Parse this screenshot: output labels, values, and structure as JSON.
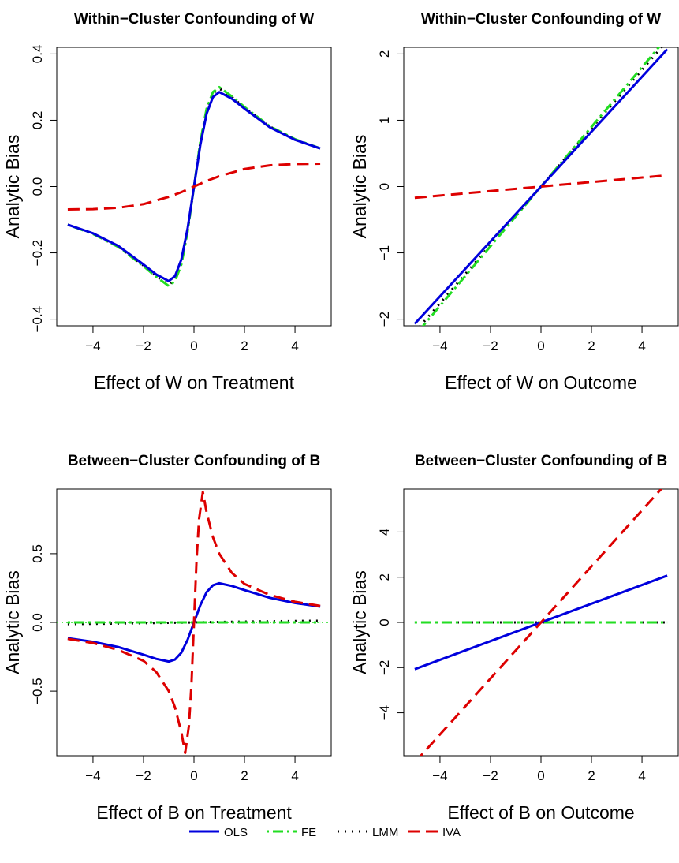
{
  "chart_data": [
    {
      "type": "line",
      "title": "Within−Cluster Confounding of W",
      "xlabel": "Effect of W on Treatment",
      "ylabel": "Analytic Bias",
      "xlim": [
        -5,
        5
      ],
      "ylim": [
        -0.42,
        0.42
      ],
      "xticks": [
        "−4",
        "−2",
        "0",
        "2",
        "4"
      ],
      "xtick_values": [
        -4,
        -2,
        0,
        2,
        4
      ],
      "yticks": [
        "−0.4",
        "−0.2",
        "0.0",
        "0.2",
        "0.4"
      ],
      "ytick_values": [
        -0.4,
        -0.2,
        0,
        0.2,
        0.4
      ],
      "grid": false,
      "series": [
        {
          "name": "OLS",
          "x": [
            -5,
            -4,
            -3,
            -2,
            -1.5,
            -1,
            -0.75,
            -0.5,
            -0.25,
            0,
            0.25,
            0.5,
            0.75,
            1,
            1.5,
            2,
            3,
            4,
            5
          ],
          "y": [
            -0.115,
            -0.141,
            -0.179,
            -0.235,
            -0.265,
            -0.285,
            -0.27,
            -0.22,
            -0.125,
            0,
            0.125,
            0.22,
            0.27,
            0.285,
            0.265,
            0.235,
            0.179,
            0.141,
            0.115
          ]
        },
        {
          "name": "FE",
          "x": [
            -5,
            -4,
            -3,
            -2,
            -1.5,
            -1,
            -0.75,
            -0.5,
            -0.25,
            0,
            0.25,
            0.5,
            0.75,
            1,
            1.5,
            2,
            3,
            4,
            5
          ],
          "y": [
            -0.115,
            -0.143,
            -0.182,
            -0.24,
            -0.272,
            -0.3,
            -0.285,
            -0.235,
            -0.135,
            0,
            0.135,
            0.235,
            0.285,
            0.3,
            0.272,
            0.24,
            0.182,
            0.143,
            0.115
          ]
        },
        {
          "name": "LMM",
          "x": [
            -5,
            -4,
            -3,
            -2,
            -1.5,
            -1,
            -0.75,
            -0.5,
            -0.25,
            0,
            0.25,
            0.5,
            0.75,
            1,
            1.5,
            2,
            3,
            4,
            5
          ],
          "y": [
            -0.115,
            -0.142,
            -0.181,
            -0.238,
            -0.27,
            -0.296,
            -0.281,
            -0.232,
            -0.132,
            0,
            0.132,
            0.232,
            0.281,
            0.296,
            0.27,
            0.238,
            0.181,
            0.142,
            0.115
          ]
        },
        {
          "name": "IVA",
          "x": [
            -5,
            -4,
            -3,
            -2,
            -1,
            -0.5,
            0,
            0.5,
            1,
            2,
            3,
            4,
            5
          ],
          "y": [
            -0.069,
            -0.068,
            -0.064,
            -0.053,
            -0.031,
            -0.017,
            0,
            0.017,
            0.031,
            0.053,
            0.064,
            0.068,
            0.069
          ]
        }
      ]
    },
    {
      "type": "line",
      "title": "Within−Cluster Confounding of W",
      "xlabel": "Effect of W on Outcome",
      "ylabel": "Analytic Bias",
      "xlim": [
        -5,
        5
      ],
      "ylim": [
        -2.1,
        2.1
      ],
      "xticks": [
        "−4",
        "−2",
        "0",
        "2",
        "4"
      ],
      "xtick_values": [
        -4,
        -2,
        0,
        2,
        4
      ],
      "yticks": [
        "−2",
        "−1",
        "0",
        "1",
        "2"
      ],
      "ytick_values": [
        -2,
        -1,
        0,
        1,
        2
      ],
      "grid": false,
      "series": [
        {
          "name": "OLS",
          "x": [
            -5,
            5
          ],
          "y": [
            -2.07,
            2.07
          ]
        },
        {
          "name": "FE",
          "x": [
            -5,
            5
          ],
          "y": [
            -2.25,
            2.25
          ]
        },
        {
          "name": "LMM",
          "x": [
            -5,
            5
          ],
          "y": [
            -2.2,
            2.2
          ]
        },
        {
          "name": "IVA",
          "x": [
            -5,
            5
          ],
          "y": [
            -0.17,
            0.17
          ]
        }
      ]
    },
    {
      "type": "line",
      "title": "Between−Cluster Confounding of B",
      "xlabel": "Effect of B on Treatment",
      "ylabel": "Analytic Bias",
      "xlim": [
        -5,
        5
      ],
      "ylim": [
        -0.97,
        0.97
      ],
      "xticks": [
        "−4",
        "−2",
        "0",
        "2",
        "4"
      ],
      "xtick_values": [
        -4,
        -2,
        0,
        2,
        4
      ],
      "yticks": [
        "−0.5",
        "0.0",
        "0.5"
      ],
      "ytick_values": [
        -0.5,
        0,
        0.5
      ],
      "grid": false,
      "reference_line": {
        "y": 0,
        "style": "dotted",
        "color": "#22dd22"
      },
      "series": [
        {
          "name": "OLS",
          "x": [
            -5,
            -4,
            -3,
            -2,
            -1.5,
            -1,
            -0.75,
            -0.5,
            -0.25,
            0,
            0.25,
            0.5,
            0.75,
            1,
            1.5,
            2,
            3,
            4,
            5
          ],
          "y": [
            -0.115,
            -0.141,
            -0.179,
            -0.235,
            -0.265,
            -0.285,
            -0.27,
            -0.22,
            -0.125,
            0,
            0.125,
            0.22,
            0.27,
            0.285,
            0.265,
            0.235,
            0.179,
            0.141,
            0.115
          ]
        },
        {
          "name": "FE",
          "x": [
            -5,
            5
          ],
          "y": [
            0,
            0
          ]
        },
        {
          "name": "LMM",
          "x": [
            -5,
            -3,
            -1,
            0,
            1,
            3,
            5
          ],
          "y": [
            -0.012,
            -0.008,
            -0.003,
            0,
            0.003,
            0.008,
            0.012
          ]
        },
        {
          "name": "IVA",
          "x": [
            -5,
            -4,
            -3,
            -2,
            -1.5,
            -1,
            -0.75,
            -0.5,
            -0.35,
            -0.2,
            -0.1,
            0,
            0.1,
            0.2,
            0.35,
            0.5,
            0.75,
            1,
            1.5,
            2,
            3,
            4,
            5
          ],
          "y": [
            -0.12,
            -0.15,
            -0.2,
            -0.28,
            -0.36,
            -0.5,
            -0.62,
            -0.8,
            -0.95,
            -0.75,
            -0.45,
            0,
            0.45,
            0.75,
            0.95,
            0.8,
            0.62,
            0.5,
            0.36,
            0.28,
            0.2,
            0.15,
            0.12
          ]
        }
      ]
    },
    {
      "type": "line",
      "title": "Between−Cluster Confounding of B",
      "xlabel": "Effect of B on Outcome",
      "ylabel": "Analytic Bias",
      "xlim": [
        -5,
        5
      ],
      "ylim": [
        -5.9,
        5.9
      ],
      "xticks": [
        "−4",
        "−2",
        "0",
        "2",
        "4"
      ],
      "xtick_values": [
        -4,
        -2,
        0,
        2,
        4
      ],
      "yticks": [
        "−4",
        "−2",
        "0",
        "2",
        "4"
      ],
      "ytick_values": [
        -4,
        -2,
        0,
        2,
        4
      ],
      "grid": false,
      "series": [
        {
          "name": "OLS",
          "x": [
            -5,
            5
          ],
          "y": [
            -2.07,
            2.07
          ]
        },
        {
          "name": "FE",
          "x": [
            -5,
            5
          ],
          "y": [
            0,
            0
          ]
        },
        {
          "name": "LMM",
          "x": [
            -5,
            5
          ],
          "y": [
            0,
            0
          ]
        },
        {
          "name": "IVA",
          "x": [
            -5,
            5
          ],
          "y": [
            -6.2,
            6.2
          ]
        }
      ]
    }
  ],
  "legend": {
    "placement": "bottom-center",
    "entries": [
      {
        "label": "OLS",
        "color": "#0000dd",
        "dash": "solid"
      },
      {
        "label": "FE",
        "color": "#22dd22",
        "dash": "dotdash"
      },
      {
        "label": "LMM",
        "color": "#000000",
        "dash": "dotted"
      },
      {
        "label": "IVA",
        "color": "#dd0000",
        "dash": "dashed"
      }
    ]
  },
  "styles": {
    "OLS": {
      "color": "#0000dd",
      "dash": "solid"
    },
    "FE": {
      "color": "#22dd22",
      "dash": "dotdash"
    },
    "LMM": {
      "color": "#000000",
      "dash": "dotted"
    },
    "IVA": {
      "color": "#dd0000",
      "dash": "dashed"
    }
  }
}
